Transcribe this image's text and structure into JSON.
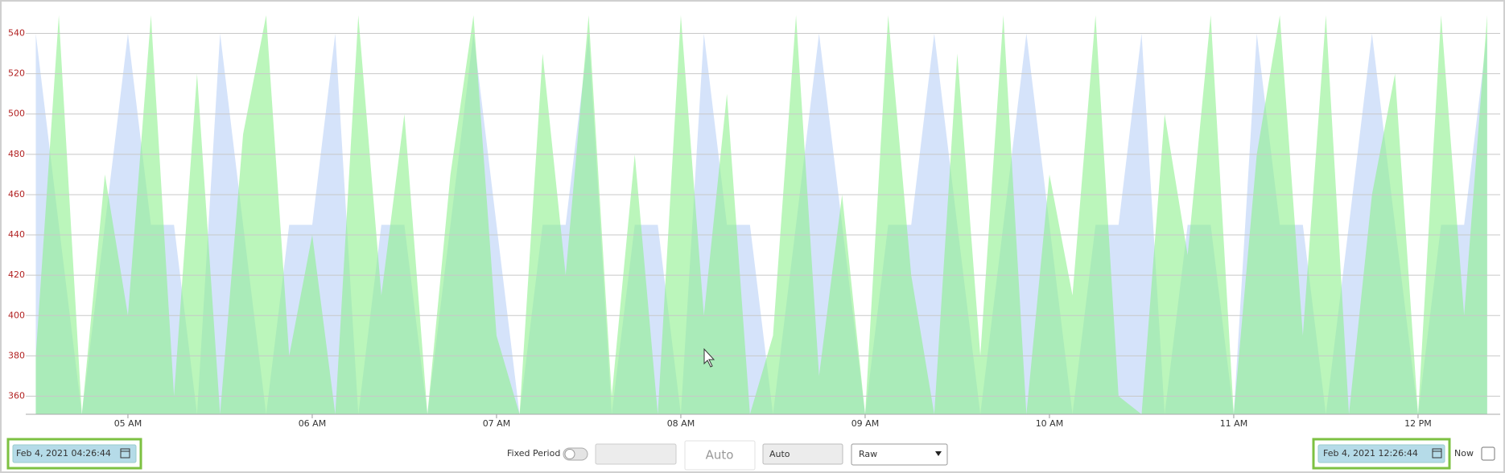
{
  "chart_data": {
    "type": "area",
    "x": [
      4.5,
      4.625,
      4.75,
      4.875,
      5,
      5.125,
      5.25,
      5.375,
      5.5,
      5.625,
      5.75,
      5.875,
      6,
      6.125,
      6.25,
      6.375,
      6.5,
      6.625,
      6.75,
      6.875,
      7,
      7.125,
      7.25,
      7.375,
      7.5,
      7.625,
      7.75,
      7.875,
      8,
      8.125,
      8.25,
      8.375,
      8.5,
      8.625,
      8.75,
      8.875,
      9,
      9.125,
      9.25,
      9.375,
      9.5,
      9.625,
      9.75,
      9.875,
      10,
      10.125,
      10.25,
      10.375,
      10.5,
      10.625,
      10.75,
      10.875,
      11,
      11.125,
      11.25,
      11.375,
      11.5,
      11.625,
      11.75,
      11.875,
      12,
      12.125,
      12.25,
      12.375
    ],
    "series": [
      {
        "color": "#d5e3fa",
        "values": [
          540,
          445,
          351,
          445,
          540,
          445,
          445,
          351,
          540,
          445,
          351,
          445,
          445,
          540,
          351,
          445,
          445,
          351,
          445,
          540,
          445,
          351,
          445,
          445,
          540,
          351,
          445,
          445,
          351,
          540,
          445,
          445,
          351,
          445,
          540,
          445,
          351,
          445,
          445,
          540,
          445,
          351,
          445,
          540,
          445,
          351,
          445,
          445,
          540,
          351,
          445,
          445,
          351,
          540,
          445,
          445,
          351,
          445,
          540,
          445,
          351,
          445,
          445,
          540
        ]
      },
      {
        "color": "#8ef08e",
        "values": [
          380,
          549,
          351,
          470,
          400,
          549,
          360,
          520,
          351,
          490,
          549,
          380,
          440,
          351,
          549,
          410,
          500,
          351,
          470,
          549,
          390,
          351,
          530,
          420,
          549,
          360,
          480,
          351,
          549,
          400,
          510,
          351,
          390,
          549,
          370,
          460,
          351,
          549,
          420,
          351,
          530,
          380,
          549,
          351,
          470,
          410,
          549,
          360,
          351,
          500,
          430,
          549,
          351,
          480,
          549,
          390,
          549,
          351,
          460,
          520,
          351,
          549,
          400,
          549
        ]
      }
    ],
    "xlim": [
      4.4456,
      12.4456
    ],
    "xticks": [
      {
        "value": 5,
        "label": "05 AM"
      },
      {
        "value": 6,
        "label": "06 AM"
      },
      {
        "value": 7,
        "label": "07 AM"
      },
      {
        "value": 8,
        "label": "08 AM"
      },
      {
        "value": 9,
        "label": "09 AM"
      },
      {
        "value": 10,
        "label": "10 AM"
      },
      {
        "value": 11,
        "label": "11 AM"
      },
      {
        "value": 12,
        "label": "12 PM"
      }
    ],
    "ylim": [
      351,
      549
    ],
    "yticks": [
      360,
      380,
      400,
      420,
      440,
      460,
      480,
      500,
      520,
      540
    ],
    "grid": true
  },
  "controls": {
    "start": "Feb 4, 2021 04:26:44",
    "fixed_period": "Fixed Period",
    "auto_button": "Auto",
    "auto_input": "Auto",
    "mode": "Raw",
    "end": "Feb 4, 2021 12:26:44",
    "now": "Now"
  }
}
